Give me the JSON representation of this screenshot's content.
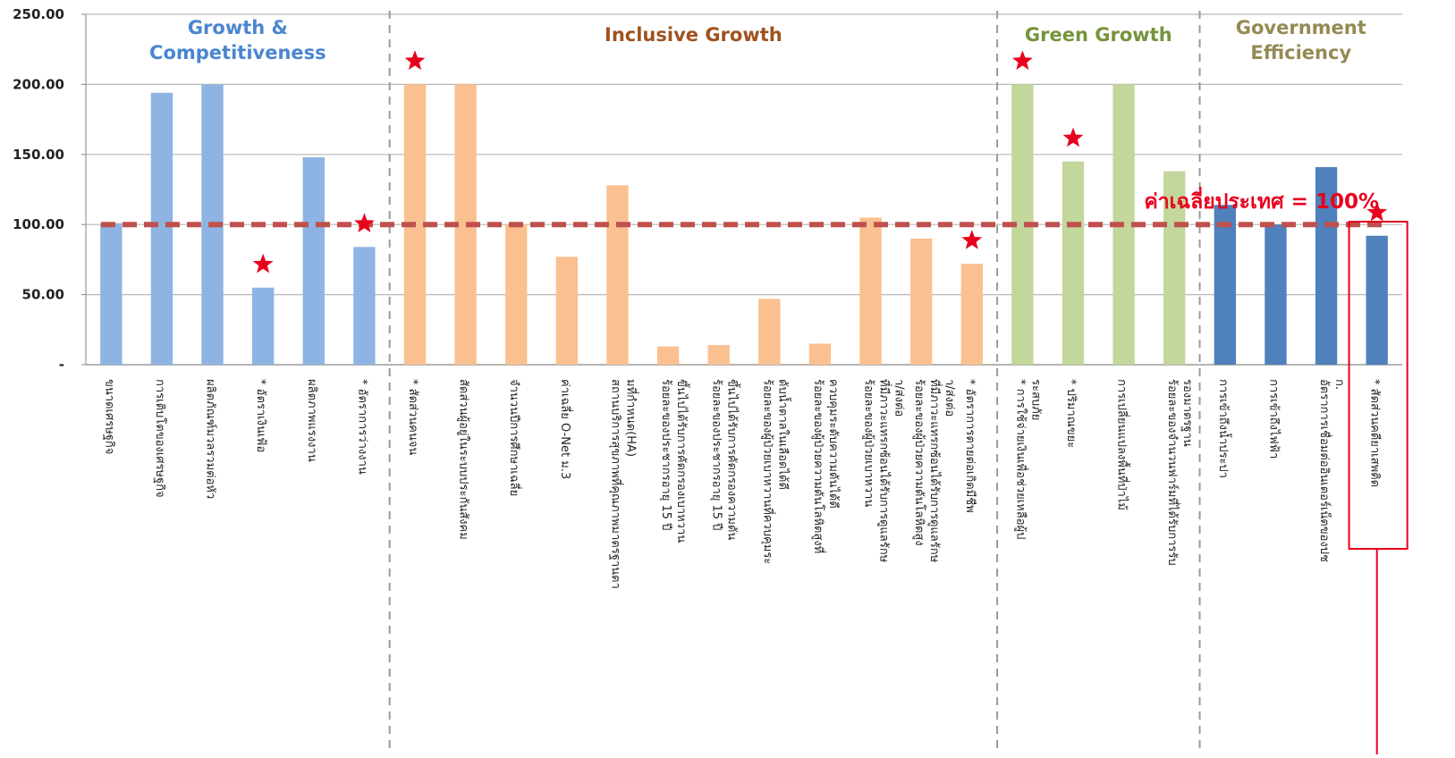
{
  "chart_data": {
    "type": "bar",
    "ylim": [
      0,
      250
    ],
    "yticks": [
      {
        "value": 0,
        "label": "-"
      },
      {
        "value": 50,
        "label": "50.00"
      },
      {
        "value": 100,
        "label": "100.00"
      },
      {
        "value": 150,
        "label": "150.00"
      },
      {
        "value": 200,
        "label": "200.00"
      },
      {
        "value": 250,
        "label": "250.00"
      }
    ],
    "grid": true,
    "reference_line": {
      "value": 100,
      "label": "ค่าเฉลี่ยประเทศ = 100%",
      "color": "#c0504d"
    },
    "groups": [
      {
        "title": "Growth & Competitiveness",
        "color": "#4a86cf",
        "bar_color": "#8db4e2",
        "start": 0,
        "end": 5
      },
      {
        "title": "Inclusive Growth",
        "color": "#a0521f",
        "bar_color": "#fac090",
        "start": 6,
        "end": 17
      },
      {
        "title": "Green Growth",
        "color": "#77933c",
        "bar_color": "#c3d69b",
        "start": 18,
        "end": 21
      },
      {
        "title": "Government Efficiency",
        "color": "#948a54",
        "bar_color": "#4f81bd",
        "start": 22,
        "end": 25
      }
    ],
    "categories": [
      "ขนาดเศรษฐกิจ",
      "การเติบโตของเศรษฐกิจ",
      "ผลิตภัณฑ์มวลรวมต่อหัว",
      "* อัตราเงินเฟ้อ",
      "ผลิตภาพแรงงาน",
      "* อัตราการว่างงาน",
      "* สัดส่วนคนจน",
      "สัดส่วนผู้อยู่ในระบบประกันสังคม",
      "จำนวนปีการศึกษาเฉลี่ย",
      "ค่าเฉลี่ย O-Net ม.3",
      "สถานบริการสุขภาพที่คุณภาพมาตรฐานตามที่กำหนด(HA)",
      "ร้อยละของประชากรอายุ 15 ปี ขึ้นไปได้รับการคัดกรองเบาหวาน",
      "ร้อยละของประชากรอายุ 15 ปี ขึ้นไปได้รับการคัดกรองความดัน",
      "ร้อยละของผู้ป่วยเบาหวานที่ควบคุมระดับน้ำตาลในเลือดได้ดี",
      "ร้อยละของผู้ป่วยความดันโลหิตสูงที่ควบคุมระดับความดันได้ดี",
      "ร้อยละของผู้ป่วยเบาหวาน ที่มีภาวะแทรกซ้อนได้รับการดูแลรักษา/ส่งต่อ",
      "ร้อยละของผู้ป่วยความดันโลหิตสูง ที่มีภาวะแทรกซ้อนได้รับการดูแลรักษา/ส่งต่อ",
      "* อัตราการตายต่อเกิดมีชีพ",
      "* การใช้จ่ายเงินเพื่อช่วยเหลือผู้ประสบภัย",
      "* ปริมาณขยะ",
      "การเปลี่ยนแปลงพื้นที่ป่าไม้",
      "ร้อยละของจำนวนฟาร์มที่ได้รับการรับรองมาตรฐาน",
      "การเข้าถึงน้ำประปา",
      "การเข้าถึงไฟฟ้า",
      "อัตราการเชื่อมต่ออินเตอร์เน็ตของปชก.",
      "* สัดส่วนคดียาเสพติด"
    ],
    "values": [
      101,
      194,
      200,
      55,
      148,
      84,
      200,
      200,
      100,
      77,
      128,
      13,
      14,
      47,
      15,
      105,
      90,
      72,
      200,
      145,
      200,
      138,
      114,
      100,
      141,
      92
    ],
    "starred": [
      3,
      5,
      6,
      17,
      18,
      19,
      25
    ],
    "highlighted": [
      25
    ]
  }
}
